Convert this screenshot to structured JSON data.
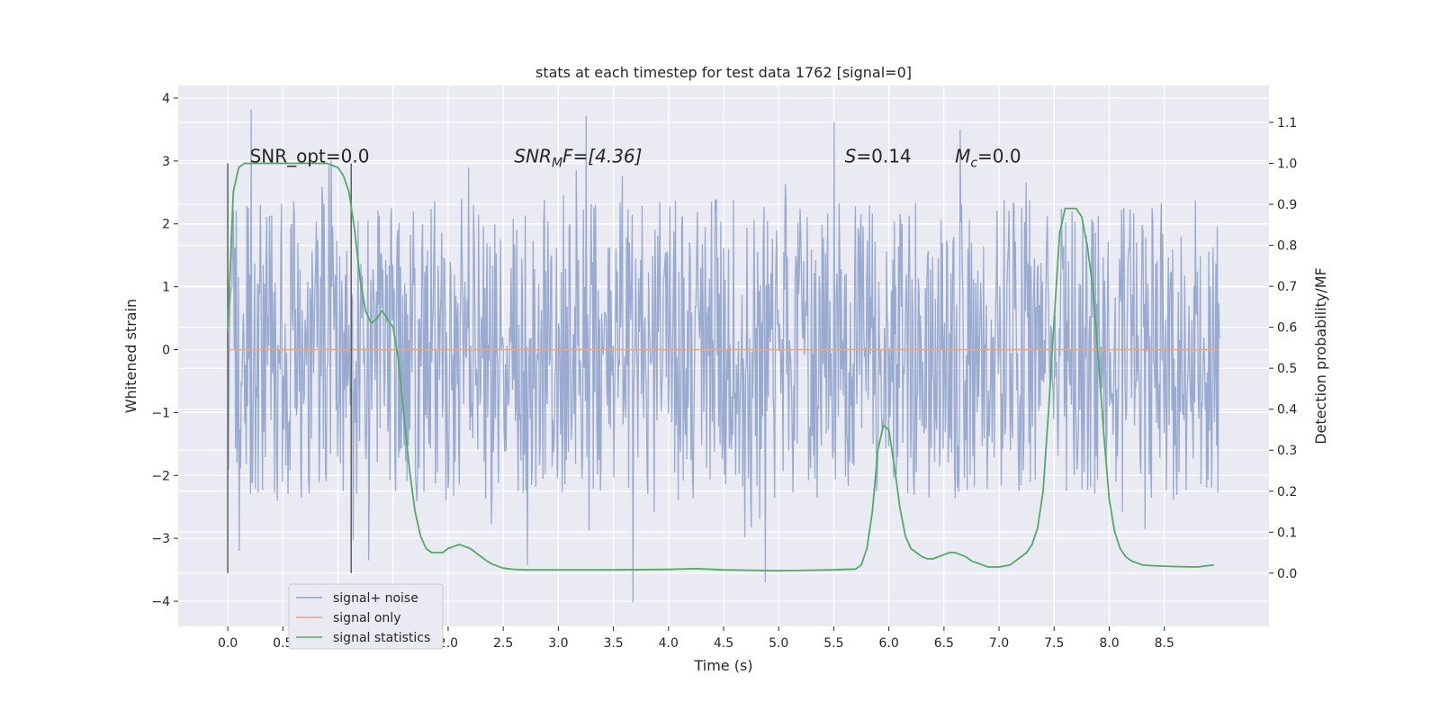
{
  "chart_data": {
    "type": "line",
    "title": "stats at each timestep for test data 1762 [signal=0]",
    "xlabel": "Time (s)",
    "ylabel": "Whitened strain",
    "y2label": "Detection probability/MF",
    "xlim": [
      -0.45,
      9.45
    ],
    "ylim": [
      -4.4,
      4.2
    ],
    "y2lim": [
      -0.13,
      1.19
    ],
    "xticks": [
      0.0,
      0.5,
      1.0,
      1.5,
      2.0,
      2.5,
      3.0,
      3.5,
      4.0,
      4.5,
      5.0,
      5.5,
      6.0,
      6.5,
      7.0,
      7.5,
      8.0,
      8.5
    ],
    "xtick_labels": [
      "0.0",
      "0.5",
      "1.0",
      "1.5",
      "2.0",
      "2.5",
      "3.0",
      "3.5",
      "4.0",
      "4.5",
      "5.0",
      "5.5",
      "6.0",
      "6.5",
      "7.0",
      "7.5",
      "8.0",
      "8.5"
    ],
    "yticks": [
      -4,
      -3,
      -2,
      -1,
      0,
      1,
      2,
      3,
      4
    ],
    "ytick_labels": [
      "−4",
      "−3",
      "−2",
      "−1",
      "0",
      "1",
      "2",
      "3",
      "4"
    ],
    "y2ticks": [
      0.0,
      0.1,
      0.2,
      0.3,
      0.4,
      0.5,
      0.6,
      0.7,
      0.8,
      0.9,
      1.0,
      1.1
    ],
    "y2tick_labels": [
      "0.0",
      "0.1",
      "0.2",
      "0.3",
      "0.4",
      "0.5",
      "0.6",
      "0.7",
      "0.8",
      "0.9",
      "1.0",
      "1.1"
    ],
    "grid": true,
    "legend_position": "lower-left",
    "series": [
      {
        "name": "signal+ noise",
        "color": "#8da0cb",
        "axis": "left",
        "t_range": [
          0.0,
          9.0
        ],
        "band_core": [
          -1.3,
          1.3
        ],
        "band_extent": [
          -3.2,
          3.7
        ],
        "notable_spikes": [
          {
            "t": 0.21,
            "y": 3.82
          },
          {
            "t": 3.25,
            "y": 3.72
          },
          {
            "t": 5.5,
            "y": 3.62
          },
          {
            "t": 6.65,
            "y": 3.5
          },
          {
            "t": 3.68,
            "y": -4.02
          },
          {
            "t": 4.88,
            "y": -3.7
          },
          {
            "t": 2.72,
            "y": -3.42
          },
          {
            "t": 1.28,
            "y": -3.35
          },
          {
            "t": 0.1,
            "y": -3.2
          }
        ]
      },
      {
        "name": "signal only",
        "color": "#e5a887",
        "axis": "left",
        "x": [
          0.0,
          9.0
        ],
        "y": [
          0.0,
          0.0
        ]
      },
      {
        "name": "signal statistics",
        "color": "#55a868",
        "axis": "right",
        "x": [
          0.0,
          0.05,
          0.1,
          0.15,
          0.2,
          0.3,
          0.5,
          0.7,
          0.9,
          1.0,
          1.05,
          1.1,
          1.15,
          1.2,
          1.25,
          1.3,
          1.35,
          1.4,
          1.45,
          1.5,
          1.55,
          1.6,
          1.65,
          1.7,
          1.75,
          1.8,
          1.85,
          1.9,
          1.95,
          2.0,
          2.05,
          2.1,
          2.15,
          2.2,
          2.25,
          2.3,
          2.35,
          2.4,
          2.5,
          2.6,
          2.7,
          2.8,
          3.0,
          3.5,
          4.0,
          4.25,
          4.5,
          5.0,
          5.5,
          5.7,
          5.75,
          5.8,
          5.85,
          5.9,
          5.95,
          6.0,
          6.05,
          6.1,
          6.15,
          6.2,
          6.25,
          6.3,
          6.35,
          6.4,
          6.45,
          6.5,
          6.55,
          6.6,
          6.65,
          6.7,
          6.75,
          6.8,
          6.85,
          6.9,
          7.0,
          7.1,
          7.15,
          7.2,
          7.25,
          7.3,
          7.35,
          7.4,
          7.45,
          7.5,
          7.55,
          7.6,
          7.65,
          7.7,
          7.75,
          7.8,
          7.85,
          7.9,
          7.95,
          8.0,
          8.05,
          8.1,
          8.15,
          8.2,
          8.25,
          8.3,
          8.4,
          8.6,
          8.8,
          8.95
        ],
        "y": [
          0.59,
          0.93,
          0.99,
          1.0,
          1.0,
          1.0,
          1.0,
          1.0,
          1.0,
          0.99,
          0.97,
          0.93,
          0.84,
          0.72,
          0.64,
          0.61,
          0.62,
          0.64,
          0.62,
          0.6,
          0.52,
          0.38,
          0.25,
          0.15,
          0.09,
          0.06,
          0.05,
          0.05,
          0.05,
          0.06,
          0.065,
          0.07,
          0.065,
          0.06,
          0.05,
          0.04,
          0.03,
          0.022,
          0.012,
          0.009,
          0.008,
          0.008,
          0.008,
          0.008,
          0.009,
          0.011,
          0.008,
          0.006,
          0.008,
          0.01,
          0.02,
          0.06,
          0.15,
          0.3,
          0.36,
          0.35,
          0.26,
          0.16,
          0.09,
          0.06,
          0.05,
          0.04,
          0.035,
          0.035,
          0.04,
          0.045,
          0.05,
          0.05,
          0.045,
          0.04,
          0.03,
          0.025,
          0.02,
          0.015,
          0.015,
          0.02,
          0.03,
          0.04,
          0.05,
          0.07,
          0.11,
          0.2,
          0.4,
          0.62,
          0.83,
          0.89,
          0.89,
          0.89,
          0.87,
          0.8,
          0.7,
          0.53,
          0.34,
          0.18,
          0.1,
          0.06,
          0.04,
          0.03,
          0.025,
          0.02,
          0.018,
          0.016,
          0.015,
          0.02
        ]
      }
    ],
    "vlines": [
      {
        "t": 0.0,
        "color": "#555555"
      },
      {
        "t": 1.12,
        "color": "#555555"
      }
    ],
    "annotations": {
      "snr_opt": "SNR_opt=0.0",
      "snr_mf_main": "SNR",
      "snr_mf_sub": "M",
      "snr_mf_rest": "F=[4.36]",
      "s_main": "S",
      "s_rest": "=0.14",
      "mc_main": "M",
      "mc_sub": "c",
      "mc_rest": "=0.0"
    },
    "legend": {
      "items": [
        "signal+ noise",
        "signal only",
        "signal statistics"
      ]
    }
  }
}
